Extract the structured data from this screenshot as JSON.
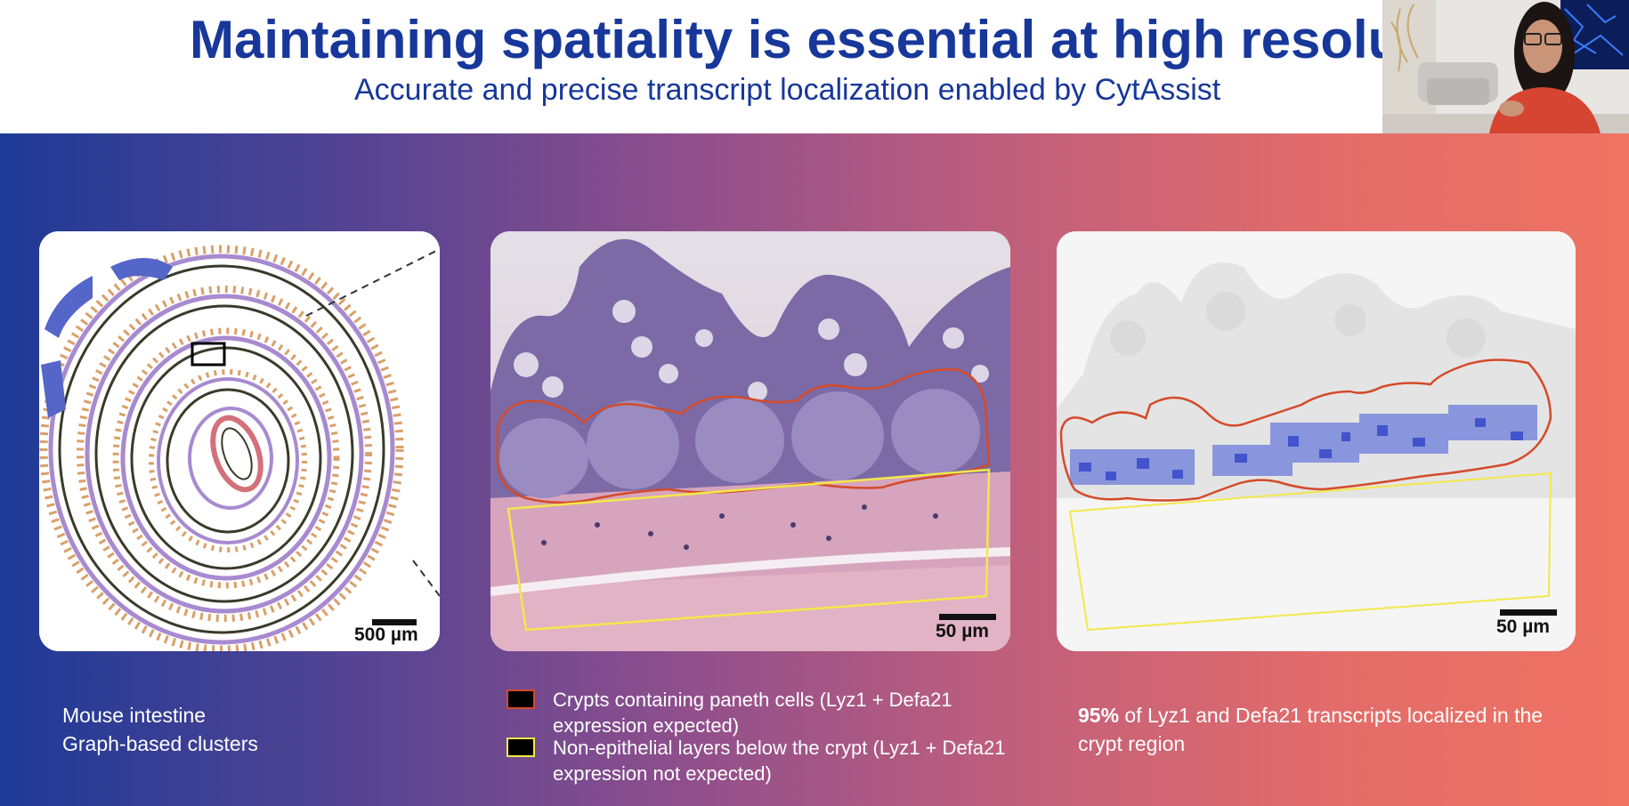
{
  "slide": {
    "title": "Maintaining spatiality is essential at high resoluti",
    "subtitle": "Accurate and precise transcript localization enabled by CytAssist",
    "colors": {
      "title": "#17379a",
      "gradient_start": "#1e3a96",
      "gradient_end": "#ef7362",
      "crypt_outline": "#d44a2a",
      "non_epithelial_outline": "#f2e84a"
    }
  },
  "panels": {
    "cluster": {
      "scale_label": "500 µm"
    },
    "he": {
      "scale_label": "50 µm"
    },
    "transcript": {
      "scale_label": "50 µm"
    }
  },
  "captions": {
    "left_line1": "Mouse intestine",
    "left_line2": "Graph-based clusters",
    "right_highlight": "95%",
    "right_text": " of Lyz1 and Defa21 transcripts localized in the crypt region"
  },
  "legend": [
    {
      "text": "Crypts containing paneth cells (Lyz1 + Defa21 expression expected)",
      "border_color": "#d44a2a"
    },
    {
      "text": "Non-epithelial layers below the crypt (Lyz1 + Defa21 expression not expected)",
      "border_color": "#f2e84a"
    }
  ]
}
